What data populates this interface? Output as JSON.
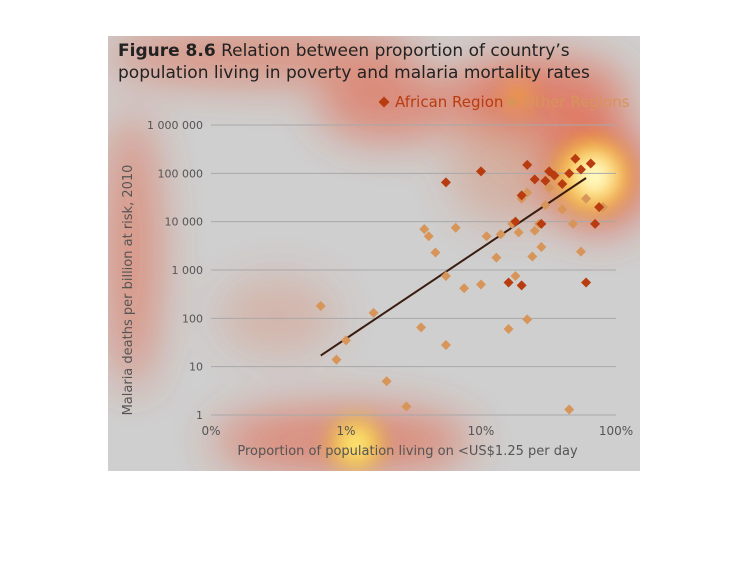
{
  "figure": {
    "label": "Figure 8.6",
    "title": "Relation between proportion of country’s population living in poverty and malaria mortality rates"
  },
  "colors": {
    "african": "#b83c10",
    "other": "#d7955a",
    "trend": "#3a1c10",
    "grid": "#a8a8a8",
    "background": "#cfcfcf"
  },
  "chart_data": {
    "type": "scatter",
    "xlabel": "Proportion of population living on <US$1.25 per day",
    "ylabel": "Malaria deaths per billion at risk, 2010",
    "x_scale": "log",
    "y_scale": "log",
    "xlim": [
      0.1,
      100
    ],
    "ylim": [
      1,
      1000000
    ],
    "x_ticks": [
      {
        "value": 0.1,
        "label": "0%"
      },
      {
        "value": 1,
        "label": "1%"
      },
      {
        "value": 10,
        "label": "10%"
      },
      {
        "value": 100,
        "label": "100%"
      }
    ],
    "y_ticks": [
      {
        "value": 1,
        "label": "1"
      },
      {
        "value": 10,
        "label": "10"
      },
      {
        "value": 100,
        "label": "100"
      },
      {
        "value": 1000,
        "label": "1 000"
      },
      {
        "value": 10000,
        "label": "10 000"
      },
      {
        "value": 100000,
        "label": "100 000"
      },
      {
        "value": 1000000,
        "label": "1 000 000"
      }
    ],
    "grid": true,
    "legend": "top-right",
    "series": [
      {
        "name": "African Region",
        "color": "#b83c10",
        "points": [
          [
            5.5,
            65000
          ],
          [
            10,
            110000
          ],
          [
            22,
            150000
          ],
          [
            20,
            35000
          ],
          [
            25,
            75000
          ],
          [
            30,
            70000
          ],
          [
            32,
            110000
          ],
          [
            35,
            90000
          ],
          [
            28,
            9000
          ],
          [
            18,
            10000
          ],
          [
            16,
            550
          ],
          [
            20,
            480
          ],
          [
            60,
            550
          ],
          [
            70,
            9000
          ],
          [
            75,
            20000
          ],
          [
            50,
            200000
          ],
          [
            55,
            120000
          ],
          [
            45,
            100000
          ],
          [
            40,
            60000
          ],
          [
            65,
            160000
          ]
        ]
      },
      {
        "name": "Other Regions",
        "color": "#d7955a",
        "points": [
          [
            0.65,
            180
          ],
          [
            0.85,
            14
          ],
          [
            1.0,
            35
          ],
          [
            1.6,
            130
          ],
          [
            2.0,
            5
          ],
          [
            2.8,
            1.5
          ],
          [
            3.6,
            65
          ],
          [
            3.8,
            7000
          ],
          [
            4.1,
            5000
          ],
          [
            4.6,
            2300
          ],
          [
            5.5,
            750
          ],
          [
            5.5,
            28
          ],
          [
            6.5,
            7500
          ],
          [
            7.5,
            420
          ],
          [
            10,
            500
          ],
          [
            11,
            5000
          ],
          [
            13,
            1800
          ],
          [
            14,
            5500
          ],
          [
            16,
            60
          ],
          [
            17,
            9000
          ],
          [
            18,
            750
          ],
          [
            19,
            6000
          ],
          [
            20,
            30000
          ],
          [
            22,
            40000
          ],
          [
            22,
            95
          ],
          [
            24,
            1900
          ],
          [
            25,
            6500
          ],
          [
            27,
            9000
          ],
          [
            28,
            3000
          ],
          [
            30,
            22000
          ],
          [
            32,
            50000
          ],
          [
            40,
            18000
          ],
          [
            45,
            1.3
          ],
          [
            48,
            9000
          ],
          [
            55,
            2400
          ],
          [
            60,
            30000
          ],
          [
            80,
            20000
          ]
        ]
      }
    ],
    "trendline": {
      "x": [
        0.65,
        60
      ],
      "y": [
        17,
        80000
      ]
    }
  }
}
